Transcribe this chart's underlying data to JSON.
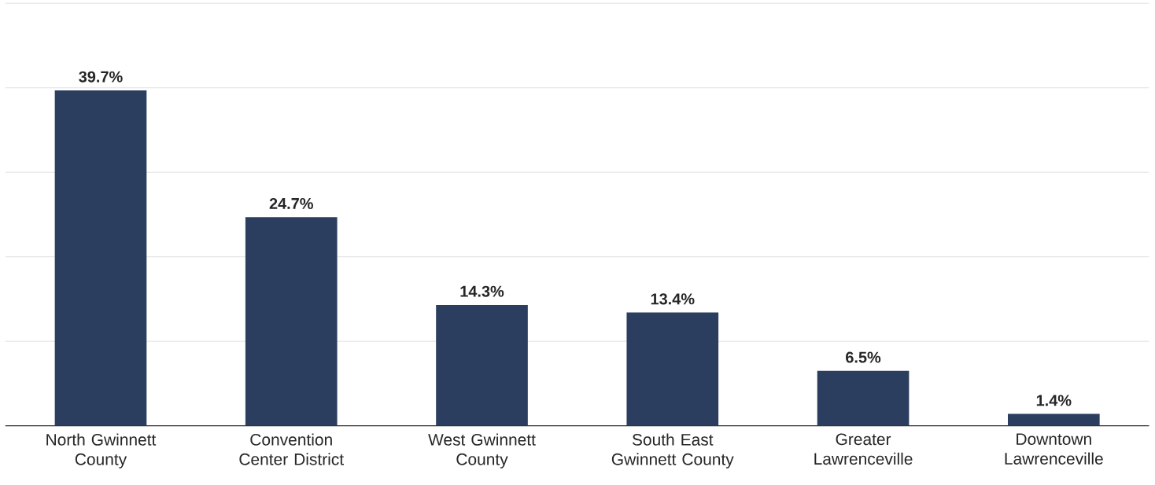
{
  "chart_data": {
    "type": "bar",
    "categories": [
      "North Gwinnett County",
      "Convention Center District",
      "West Gwinnett County",
      "South East Gwinnett County",
      "Greater Lawrenceville",
      "Downtown Lawrenceville"
    ],
    "values": [
      39.7,
      24.7,
      14.3,
      13.4,
      6.5,
      1.4
    ],
    "value_labels": [
      "39.7%",
      "24.7%",
      "14.3%",
      "13.4%",
      "6.5%",
      "1.4%"
    ],
    "color": "#2c3e5f",
    "ylim": [
      0,
      50
    ],
    "yticks": [
      {
        "value": 0,
        "label": null
      },
      {
        "value": 10,
        "label": null
      },
      {
        "value": 20,
        "label": null
      },
      {
        "value": 30,
        "label": null
      },
      {
        "value": 40,
        "label": null
      },
      {
        "value": 50,
        "label": null
      }
    ],
    "grid": "y",
    "tick_labels": "x"
  }
}
